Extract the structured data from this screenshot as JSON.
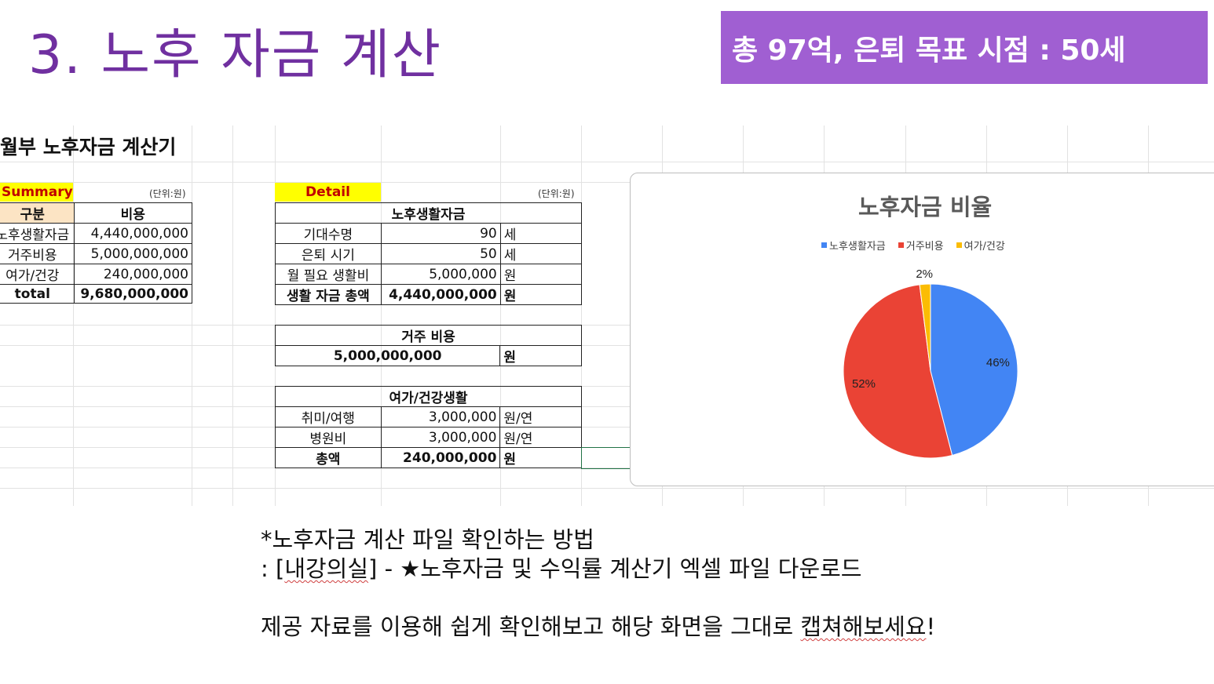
{
  "slide": {
    "title": "3. 노후 자금 계산",
    "banner": "총 97억, 은퇴 목표 시점  : 50세"
  },
  "sheet": {
    "title": "월부 노후자금 계산기",
    "summary": {
      "tag": "Summary",
      "unit": "(단위:원)",
      "header": [
        "구분",
        "비용"
      ],
      "rows": [
        {
          "label": "노후생활자금",
          "value": "4,440,000,000"
        },
        {
          "label": "거주비용",
          "value": "5,000,000,000"
        },
        {
          "label": "여가/건강",
          "value": "240,000,000"
        },
        {
          "label": "total",
          "value": "9,680,000,000"
        }
      ]
    },
    "detail": {
      "tag": "Detail",
      "unit": "(단위:원)",
      "living": {
        "header": "노후생활자금",
        "rows": [
          {
            "label": "기대수명",
            "value": "90",
            "unit": "세"
          },
          {
            "label": "은퇴 시기",
            "value": "50",
            "unit": "세"
          },
          {
            "label": "월 필요 생활비",
            "value": "5,000,000",
            "unit": "원"
          },
          {
            "label": "생활 자금 총액",
            "value": "4,440,000,000",
            "unit": "원"
          }
        ]
      },
      "housing": {
        "header": "거주 비용",
        "value": "5,000,000,000",
        "unit": "원"
      },
      "leisure": {
        "header": "여가/건강생활",
        "rows": [
          {
            "label": "취미/여행",
            "value": "3,000,000",
            "unit": "원/연"
          },
          {
            "label": "병원비",
            "value": "3,000,000",
            "unit": "원/연"
          },
          {
            "label": "총액",
            "value": "240,000,000",
            "unit": "원"
          }
        ]
      }
    }
  },
  "chart_data": {
    "type": "pie",
    "title": "노후자금 비율",
    "categories": [
      "노후생활자금",
      "거주비용",
      "여가/건강"
    ],
    "values": [
      46,
      52,
      2
    ],
    "labels": [
      "46%",
      "52%",
      "2%"
    ],
    "colors": [
      "#4285f4",
      "#ea4335",
      "#fbbc04"
    ],
    "legend": "top"
  },
  "notes": {
    "line1": "*노후자금 계산 파일 확인하는 방법",
    "line2_prefix": ": [",
    "line2_link": "내강의실",
    "line2_suffix": "] - ★노후자금 및 수익률 계산기 엑셀 파일 다운로드",
    "line3_prefix": "제공 자료를 이용해 쉽게 확인해보고 해당 화면을 그대로 ",
    "line3_squiggle": "캡쳐해보세요",
    "line3_suffix": "!"
  }
}
